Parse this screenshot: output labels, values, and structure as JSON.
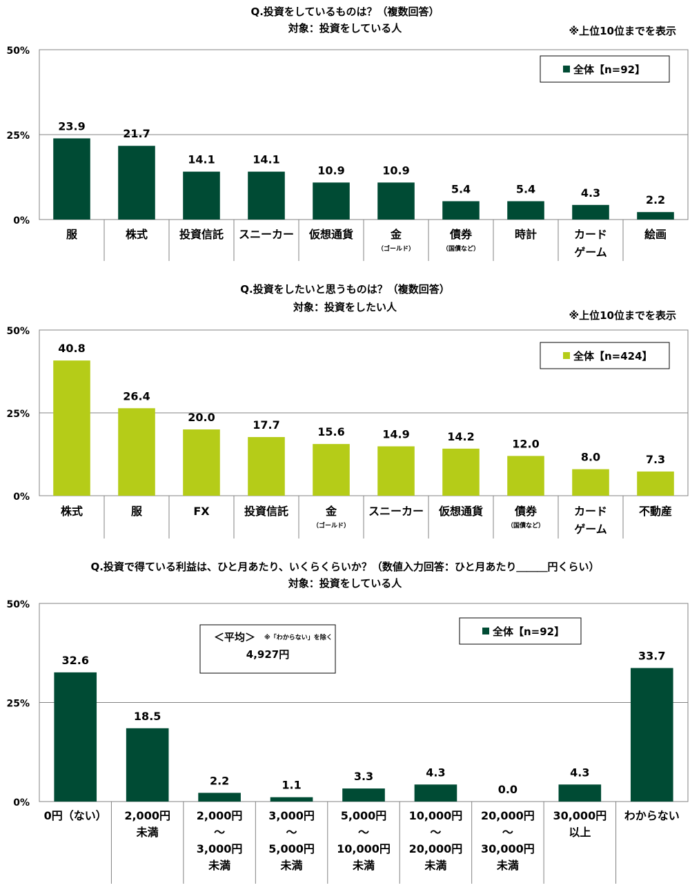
{
  "colors": {
    "dark_green": "#004b34",
    "lime": "#b5cc18",
    "grid": "#808080"
  },
  "chart_data": [
    {
      "type": "bar",
      "title": "Q.投資をしているものは？（複数回答）",
      "subtitle": "対象：投資をしている人",
      "note": "※上位10位までを表示",
      "legend": "全体【n=92】",
      "legend_position": "top-right",
      "ylim": [
        0,
        50
      ],
      "yticks": [
        "0%",
        "25%",
        "50%"
      ],
      "grid": true,
      "categories": [
        {
          "label": "服",
          "sub": ""
        },
        {
          "label": "株式",
          "sub": ""
        },
        {
          "label": "投資信託",
          "sub": ""
        },
        {
          "label": "スニーカー",
          "sub": ""
        },
        {
          "label": "仮想通貨",
          "sub": ""
        },
        {
          "label": "金",
          "sub": "（ゴールド）"
        },
        {
          "label": "債券",
          "sub": "（国債など）"
        },
        {
          "label": "時計",
          "sub": ""
        },
        {
          "label": "カード\nゲーム",
          "sub": ""
        },
        {
          "label": "絵画",
          "sub": ""
        }
      ],
      "values": [
        23.9,
        21.7,
        14.1,
        14.1,
        10.9,
        10.9,
        5.4,
        5.4,
        4.3,
        2.2
      ],
      "value_labels": [
        "23.9",
        "21.7",
        "14.1",
        "14.1",
        "10.9",
        "10.9",
        "5.4",
        "5.4",
        "4.3",
        "2.2"
      ],
      "color": "#004b34"
    },
    {
      "type": "bar",
      "title": "Q.投資をしたいと思うものは？（複数回答）",
      "subtitle": "対象：投資をしたい人",
      "note": "※上位10位までを表示",
      "legend": "全体【n=424】",
      "legend_position": "top-right",
      "ylim": [
        0,
        50
      ],
      "yticks": [
        "0%",
        "25%",
        "50%"
      ],
      "grid": true,
      "categories": [
        {
          "label": "株式",
          "sub": ""
        },
        {
          "label": "服",
          "sub": ""
        },
        {
          "label": "FX",
          "sub": ""
        },
        {
          "label": "投資信託",
          "sub": ""
        },
        {
          "label": "金",
          "sub": "（ゴールド）"
        },
        {
          "label": "スニーカー",
          "sub": ""
        },
        {
          "label": "仮想通貨",
          "sub": ""
        },
        {
          "label": "債券",
          "sub": "（国債など）"
        },
        {
          "label": "カード\nゲーム",
          "sub": ""
        },
        {
          "label": "不動産",
          "sub": ""
        }
      ],
      "values": [
        40.8,
        26.4,
        20.0,
        17.7,
        15.6,
        14.9,
        14.2,
        12.0,
        8.0,
        7.3
      ],
      "value_labels": [
        "40.8",
        "26.4",
        "20.0",
        "17.7",
        "15.6",
        "14.9",
        "14.2",
        "12.0",
        "8.0",
        "7.3"
      ],
      "color": "#b5cc18"
    },
    {
      "type": "bar",
      "title": "Q.投資で得ている利益は、ひと月あたり、いくらくらいか？（数値入力回答：ひと月あたり＿＿＿円くらい）",
      "subtitle": "対象：投資をしている人",
      "note": "",
      "legend": "全体【n=92】",
      "legend_position": "top-right",
      "ylim": [
        0,
        50
      ],
      "yticks": [
        "0%",
        "25%",
        "50%"
      ],
      "grid": true,
      "average": {
        "heading": "＜平均＞",
        "note": "※「わからない」を除く",
        "value": "4,927円"
      },
      "categories": [
        {
          "label": "0円（ない）",
          "sub": ""
        },
        {
          "label": "2,000円\n未満",
          "sub": ""
        },
        {
          "label": "2,000円\n～\n3,000円\n未満",
          "sub": ""
        },
        {
          "label": "3,000円\n～\n5,000円\n未満",
          "sub": ""
        },
        {
          "label": "5,000円\n～\n10,000円\n未満",
          "sub": ""
        },
        {
          "label": "10,000円\n～\n20,000円\n未満",
          "sub": ""
        },
        {
          "label": "20,000円\n～\n30,000円\n未満",
          "sub": ""
        },
        {
          "label": "30,000円\n以上",
          "sub": ""
        },
        {
          "label": "わからない",
          "sub": ""
        }
      ],
      "values": [
        32.6,
        18.5,
        2.2,
        1.1,
        3.3,
        4.3,
        0.0,
        4.3,
        33.7
      ],
      "value_labels": [
        "32.6",
        "18.5",
        "2.2",
        "1.1",
        "3.3",
        "4.3",
        "0.0",
        "4.3",
        "33.7"
      ],
      "color": "#004b34"
    }
  ]
}
